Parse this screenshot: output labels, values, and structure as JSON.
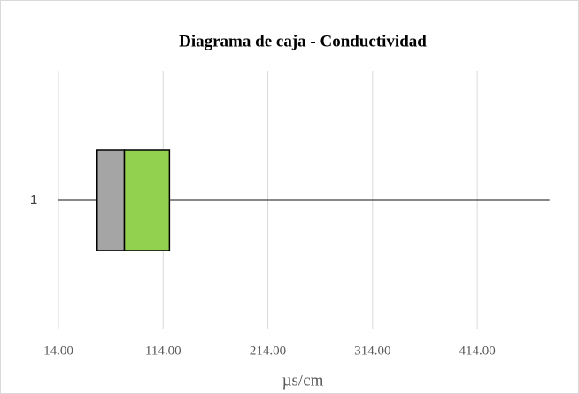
{
  "chart_data": {
    "type": "boxplot",
    "title": "Diagrama de caja - Conductividad",
    "xlabel": "µs/cm",
    "orientation": "horizontal",
    "categories": [
      "1"
    ],
    "min": [
      14
    ],
    "q1": [
      51
    ],
    "median": [
      77
    ],
    "q3": [
      120
    ],
    "max": [
      483
    ],
    "color_lower": "#a5a5a5",
    "color_upper": "#92d050",
    "xlim": [
      14,
      490
    ],
    "xticks": [
      {
        "value": 14,
        "label": "14.00"
      },
      {
        "value": 114,
        "label": "114.00"
      },
      {
        "value": 214,
        "label": "214.00"
      },
      {
        "value": 314,
        "label": "314.00"
      },
      {
        "value": 414,
        "label": "414.00"
      }
    ],
    "grid": true
  }
}
